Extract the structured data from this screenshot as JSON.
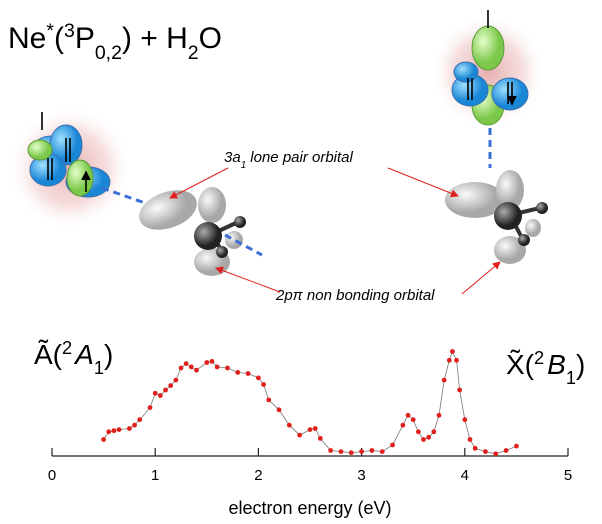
{
  "chart_data": {
    "type": "scatter-line",
    "title": [
      "Ne",
      "*",
      "(",
      "3",
      "P",
      "0,2",
      ") + H",
      "2",
      "O"
    ],
    "annotations": [
      [
        "3a",
        "1",
        " lone pair orbital"
      ],
      [
        "2pπ non bonding orbital"
      ]
    ],
    "band_labels": [
      [
        "Ã(",
        "2",
        "A",
        "1",
        ")"
      ],
      [
        "X̃(",
        "2",
        "B",
        "1",
        ")"
      ]
    ],
    "xlabel": "electron energy (eV)",
    "xlim": [
      0,
      5
    ],
    "xticks": [
      0,
      1,
      2,
      3,
      4,
      5
    ],
    "ylim": [
      0,
      1
    ],
    "color": "#e0201c",
    "line_color": "#777777",
    "x": [
      0.5,
      0.55,
      0.6,
      0.65,
      0.75,
      0.8,
      0.85,
      0.95,
      1.0,
      1.05,
      1.1,
      1.15,
      1.2,
      1.25,
      1.3,
      1.35,
      1.4,
      1.5,
      1.55,
      1.6,
      1.7,
      1.8,
      1.9,
      2.0,
      2.05,
      2.1,
      2.2,
      2.3,
      2.4,
      2.5,
      2.55,
      2.6,
      2.7,
      2.8,
      2.9,
      3.0,
      3.1,
      3.2,
      3.3,
      3.4,
      3.45,
      3.5,
      3.55,
      3.6,
      3.65,
      3.7,
      3.75,
      3.8,
      3.85,
      3.88,
      3.92,
      3.95,
      4.0,
      4.05,
      4.1,
      4.2,
      4.3,
      4.4,
      4.5
    ],
    "y": [
      0.15,
      0.22,
      0.23,
      0.24,
      0.25,
      0.28,
      0.33,
      0.44,
      0.57,
      0.55,
      0.6,
      0.64,
      0.69,
      0.8,
      0.84,
      0.81,
      0.78,
      0.85,
      0.86,
      0.81,
      0.8,
      0.76,
      0.75,
      0.71,
      0.65,
      0.51,
      0.42,
      0.28,
      0.19,
      0.24,
      0.25,
      0.16,
      0.05,
      0.04,
      0.03,
      0.04,
      0.05,
      0.04,
      0.1,
      0.28,
      0.37,
      0.33,
      0.22,
      0.15,
      0.17,
      0.22,
      0.37,
      0.69,
      0.87,
      0.95,
      0.87,
      0.6,
      0.33,
      0.15,
      0.07,
      0.04,
      0.02,
      0.05,
      0.09
    ]
  }
}
